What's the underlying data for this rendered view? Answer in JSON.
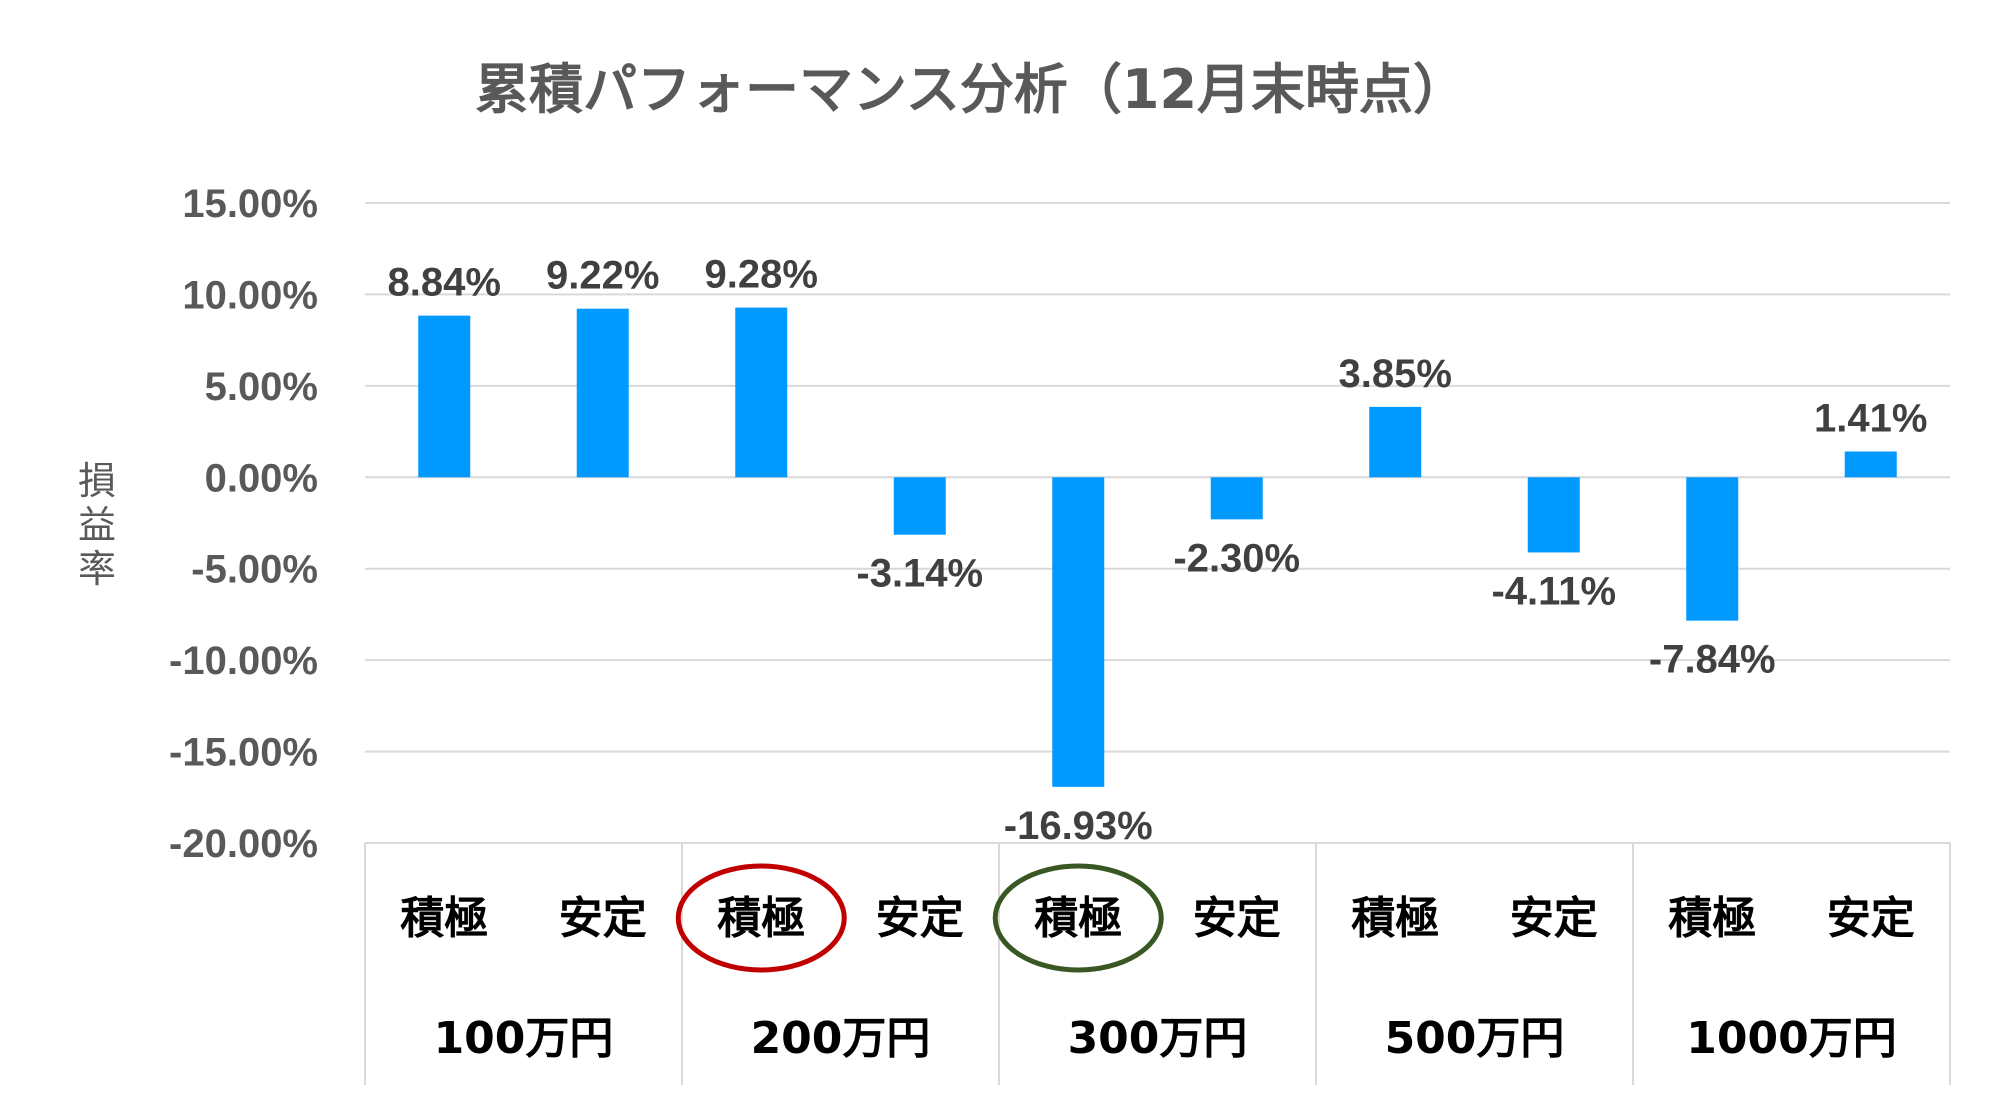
{
  "chart_data": {
    "type": "bar",
    "title": "累積パフォーマンス分析（12月末時点）",
    "ylabel": "損益率",
    "xlabel": "",
    "ylim": [
      -20,
      15
    ],
    "yticks": [
      15,
      10,
      5,
      0,
      -5,
      -10,
      -15,
      -20
    ],
    "ytick_labels": [
      "15.00%",
      "10.00%",
      "5.00%",
      "0.00%",
      "-5.00%",
      "-10.00%",
      "-15.00%",
      "-20.00%"
    ],
    "grid": true,
    "legend": "none",
    "bar_color": "#0099ff",
    "groups": [
      {
        "label": "100万円",
        "categories": [
          "積極",
          "安定"
        ]
      },
      {
        "label": "200万円",
        "categories": [
          "積極",
          "安定"
        ]
      },
      {
        "label": "300万円",
        "categories": [
          "積極",
          "安定"
        ]
      },
      {
        "label": "500万円",
        "categories": [
          "積極",
          "安定"
        ]
      },
      {
        "label": "1000万円",
        "categories": [
          "積極",
          "安定"
        ]
      }
    ],
    "categories": [
      "積極",
      "安定",
      "積極",
      "安定",
      "積極",
      "安定",
      "積極",
      "安定",
      "積極",
      "安定"
    ],
    "values": [
      8.84,
      9.22,
      9.28,
      -3.14,
      -16.93,
      -2.3,
      3.85,
      -4.11,
      -7.84,
      1.41
    ],
    "data_labels": [
      "8.84%",
      "9.22%",
      "9.28%",
      "-3.14%",
      "-16.93%",
      "-2.30%",
      "3.85%",
      "-4.11%",
      "-7.84%",
      "1.41%"
    ],
    "annotations": [
      {
        "type": "ellipse",
        "category_index": 2,
        "color": "#c00000"
      },
      {
        "type": "ellipse",
        "category_index": 4,
        "color": "#385723"
      }
    ]
  }
}
